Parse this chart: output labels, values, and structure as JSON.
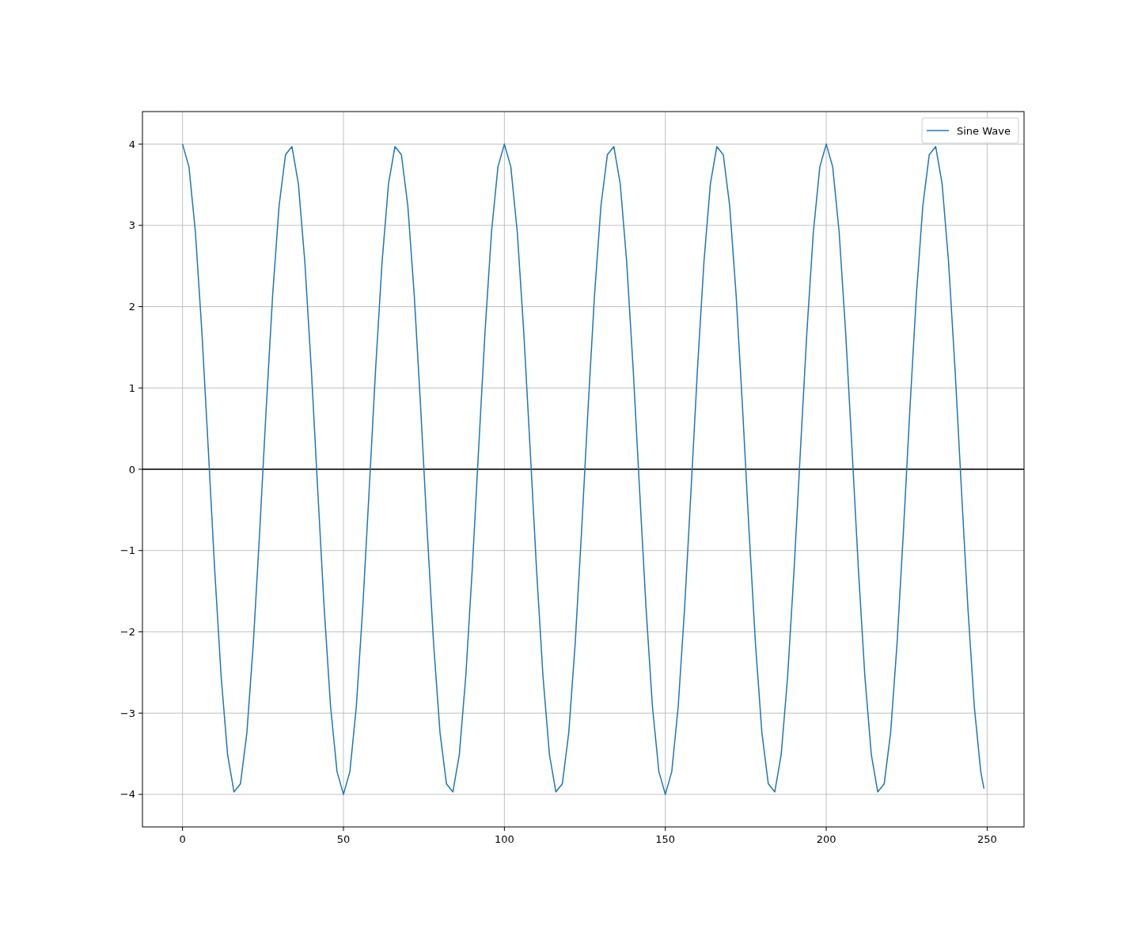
{
  "chart_data": {
    "type": "line",
    "xlim": [
      -12.45,
      261.45
    ],
    "ylim": [
      -4.4,
      4.4
    ],
    "xticks": [
      0,
      50,
      100,
      150,
      200,
      250
    ],
    "yticks": [
      {
        "value": -4,
        "label": "−4"
      },
      {
        "value": -3,
        "label": "−3"
      },
      {
        "value": -2,
        "label": "−2"
      },
      {
        "value": -1,
        "label": "−1"
      },
      0,
      1,
      2,
      3,
      4
    ],
    "grid": true,
    "legend": "top right",
    "line_style": "solid",
    "ref_lines": [
      {
        "axis": "y",
        "value": 0,
        "color": "#000000"
      }
    ],
    "series": [
      {
        "name": "Sine Wave",
        "color": "#1f77b4",
        "x": [
          0,
          2,
          4,
          6,
          8,
          10,
          12,
          14,
          16,
          18,
          20,
          22,
          24,
          26,
          28,
          30,
          32,
          34,
          36,
          38,
          40,
          42,
          44,
          46,
          48,
          50,
          52,
          54,
          56,
          58,
          60,
          62,
          64,
          66,
          68,
          70,
          72,
          74,
          76,
          78,
          80,
          82,
          84,
          86,
          88,
          90,
          92,
          94,
          96,
          98,
          100,
          102,
          104,
          106,
          108,
          110,
          112,
          114,
          116,
          118,
          120,
          122,
          124,
          126,
          128,
          130,
          132,
          134,
          136,
          138,
          140,
          142,
          144,
          146,
          148,
          150,
          152,
          154,
          156,
          158,
          160,
          162,
          164,
          166,
          168,
          170,
          172,
          174,
          176,
          178,
          180,
          182,
          184,
          186,
          188,
          190,
          192,
          194,
          196,
          198,
          200,
          202,
          204,
          206,
          208,
          210,
          212,
          214,
          216,
          218,
          220,
          222,
          224,
          226,
          228,
          230,
          232,
          234,
          236,
          238,
          240,
          242,
          244,
          246,
          248,
          249
        ],
        "values": [
          4,
          3.72,
          2.92,
          1.7,
          0.25,
          -1.24,
          -2.55,
          -3.51,
          -3.97,
          -3.87,
          -3.24,
          -2.14,
          -0.75,
          0.75,
          2.14,
          3.24,
          3.87,
          3.97,
          3.51,
          2.55,
          1.24,
          -0.25,
          -1.7,
          -2.92,
          -3.72,
          -4,
          -3.72,
          -2.92,
          -1.7,
          -0.25,
          1.24,
          2.55,
          3.51,
          3.97,
          3.87,
          3.24,
          2.14,
          0.75,
          -0.75,
          -2.14,
          -3.24,
          -3.87,
          -3.97,
          -3.51,
          -2.55,
          -1.24,
          0.25,
          1.7,
          2.92,
          3.72,
          4,
          3.72,
          2.92,
          1.7,
          0.25,
          -1.24,
          -2.55,
          -3.51,
          -3.97,
          -3.87,
          -3.24,
          -2.14,
          -0.75,
          0.75,
          2.14,
          3.24,
          3.87,
          3.97,
          3.51,
          2.55,
          1.24,
          -0.25,
          -1.7,
          -2.92,
          -3.72,
          -4,
          -3.72,
          -2.92,
          -1.7,
          -0.25,
          1.24,
          2.55,
          3.51,
          3.97,
          3.87,
          3.24,
          2.14,
          0.75,
          -0.75,
          -2.14,
          -3.24,
          -3.87,
          -3.97,
          -3.51,
          -2.55,
          -1.24,
          0.25,
          1.7,
          2.92,
          3.72,
          4,
          3.72,
          2.92,
          1.7,
          0.25,
          -1.24,
          -2.55,
          -3.51,
          -3.97,
          -3.87,
          -3.24,
          -2.14,
          -0.75,
          0.75,
          2.14,
          3.24,
          3.87,
          3.97,
          3.51,
          2.55,
          1.24,
          -0.25,
          -1.7,
          -2.92,
          -3.72,
          -3.93
        ]
      }
    ]
  }
}
